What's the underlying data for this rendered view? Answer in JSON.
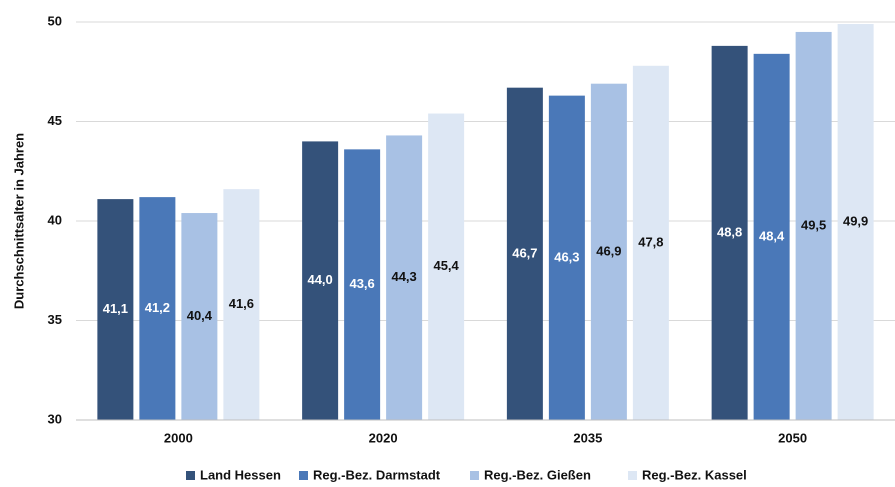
{
  "chart_data": {
    "type": "bar",
    "y_label": "Durchschnittsalter in Jahren",
    "categories": [
      "2000",
      "2020",
      "2035",
      "2050"
    ],
    "series": [
      {
        "name": "Land Hessen",
        "color": "#34527a",
        "values": [
          41.1,
          44.0,
          46.7,
          48.8
        ],
        "value_labels": [
          "41,1",
          "44,0",
          "46,7",
          "48,8"
        ]
      },
      {
        "name": "Reg.-Bez. Darmstadt",
        "color": "#4a78b8",
        "values": [
          41.2,
          43.6,
          46.3,
          48.4
        ],
        "value_labels": [
          "41,2",
          "43,6",
          "46,3",
          "48,4"
        ]
      },
      {
        "name": "Reg.-Bez. Gießen",
        "color": "#a8c1e4",
        "values": [
          40.4,
          44.3,
          46.9,
          49.5
        ],
        "value_labels": [
          "40,4",
          "44,3",
          "46,9",
          "49,5"
        ]
      },
      {
        "name": "Reg.-Bez. Kassel",
        "color": "#dde7f4",
        "values": [
          41.6,
          45.4,
          47.8,
          49.9
        ],
        "value_labels": [
          "41,6",
          "45,4",
          "47,8",
          "49,9"
        ]
      }
    ],
    "ylim": [
      30,
      50
    ],
    "yticks": [
      30,
      35,
      40,
      45,
      50
    ],
    "grid": true,
    "legend": "bottom"
  }
}
